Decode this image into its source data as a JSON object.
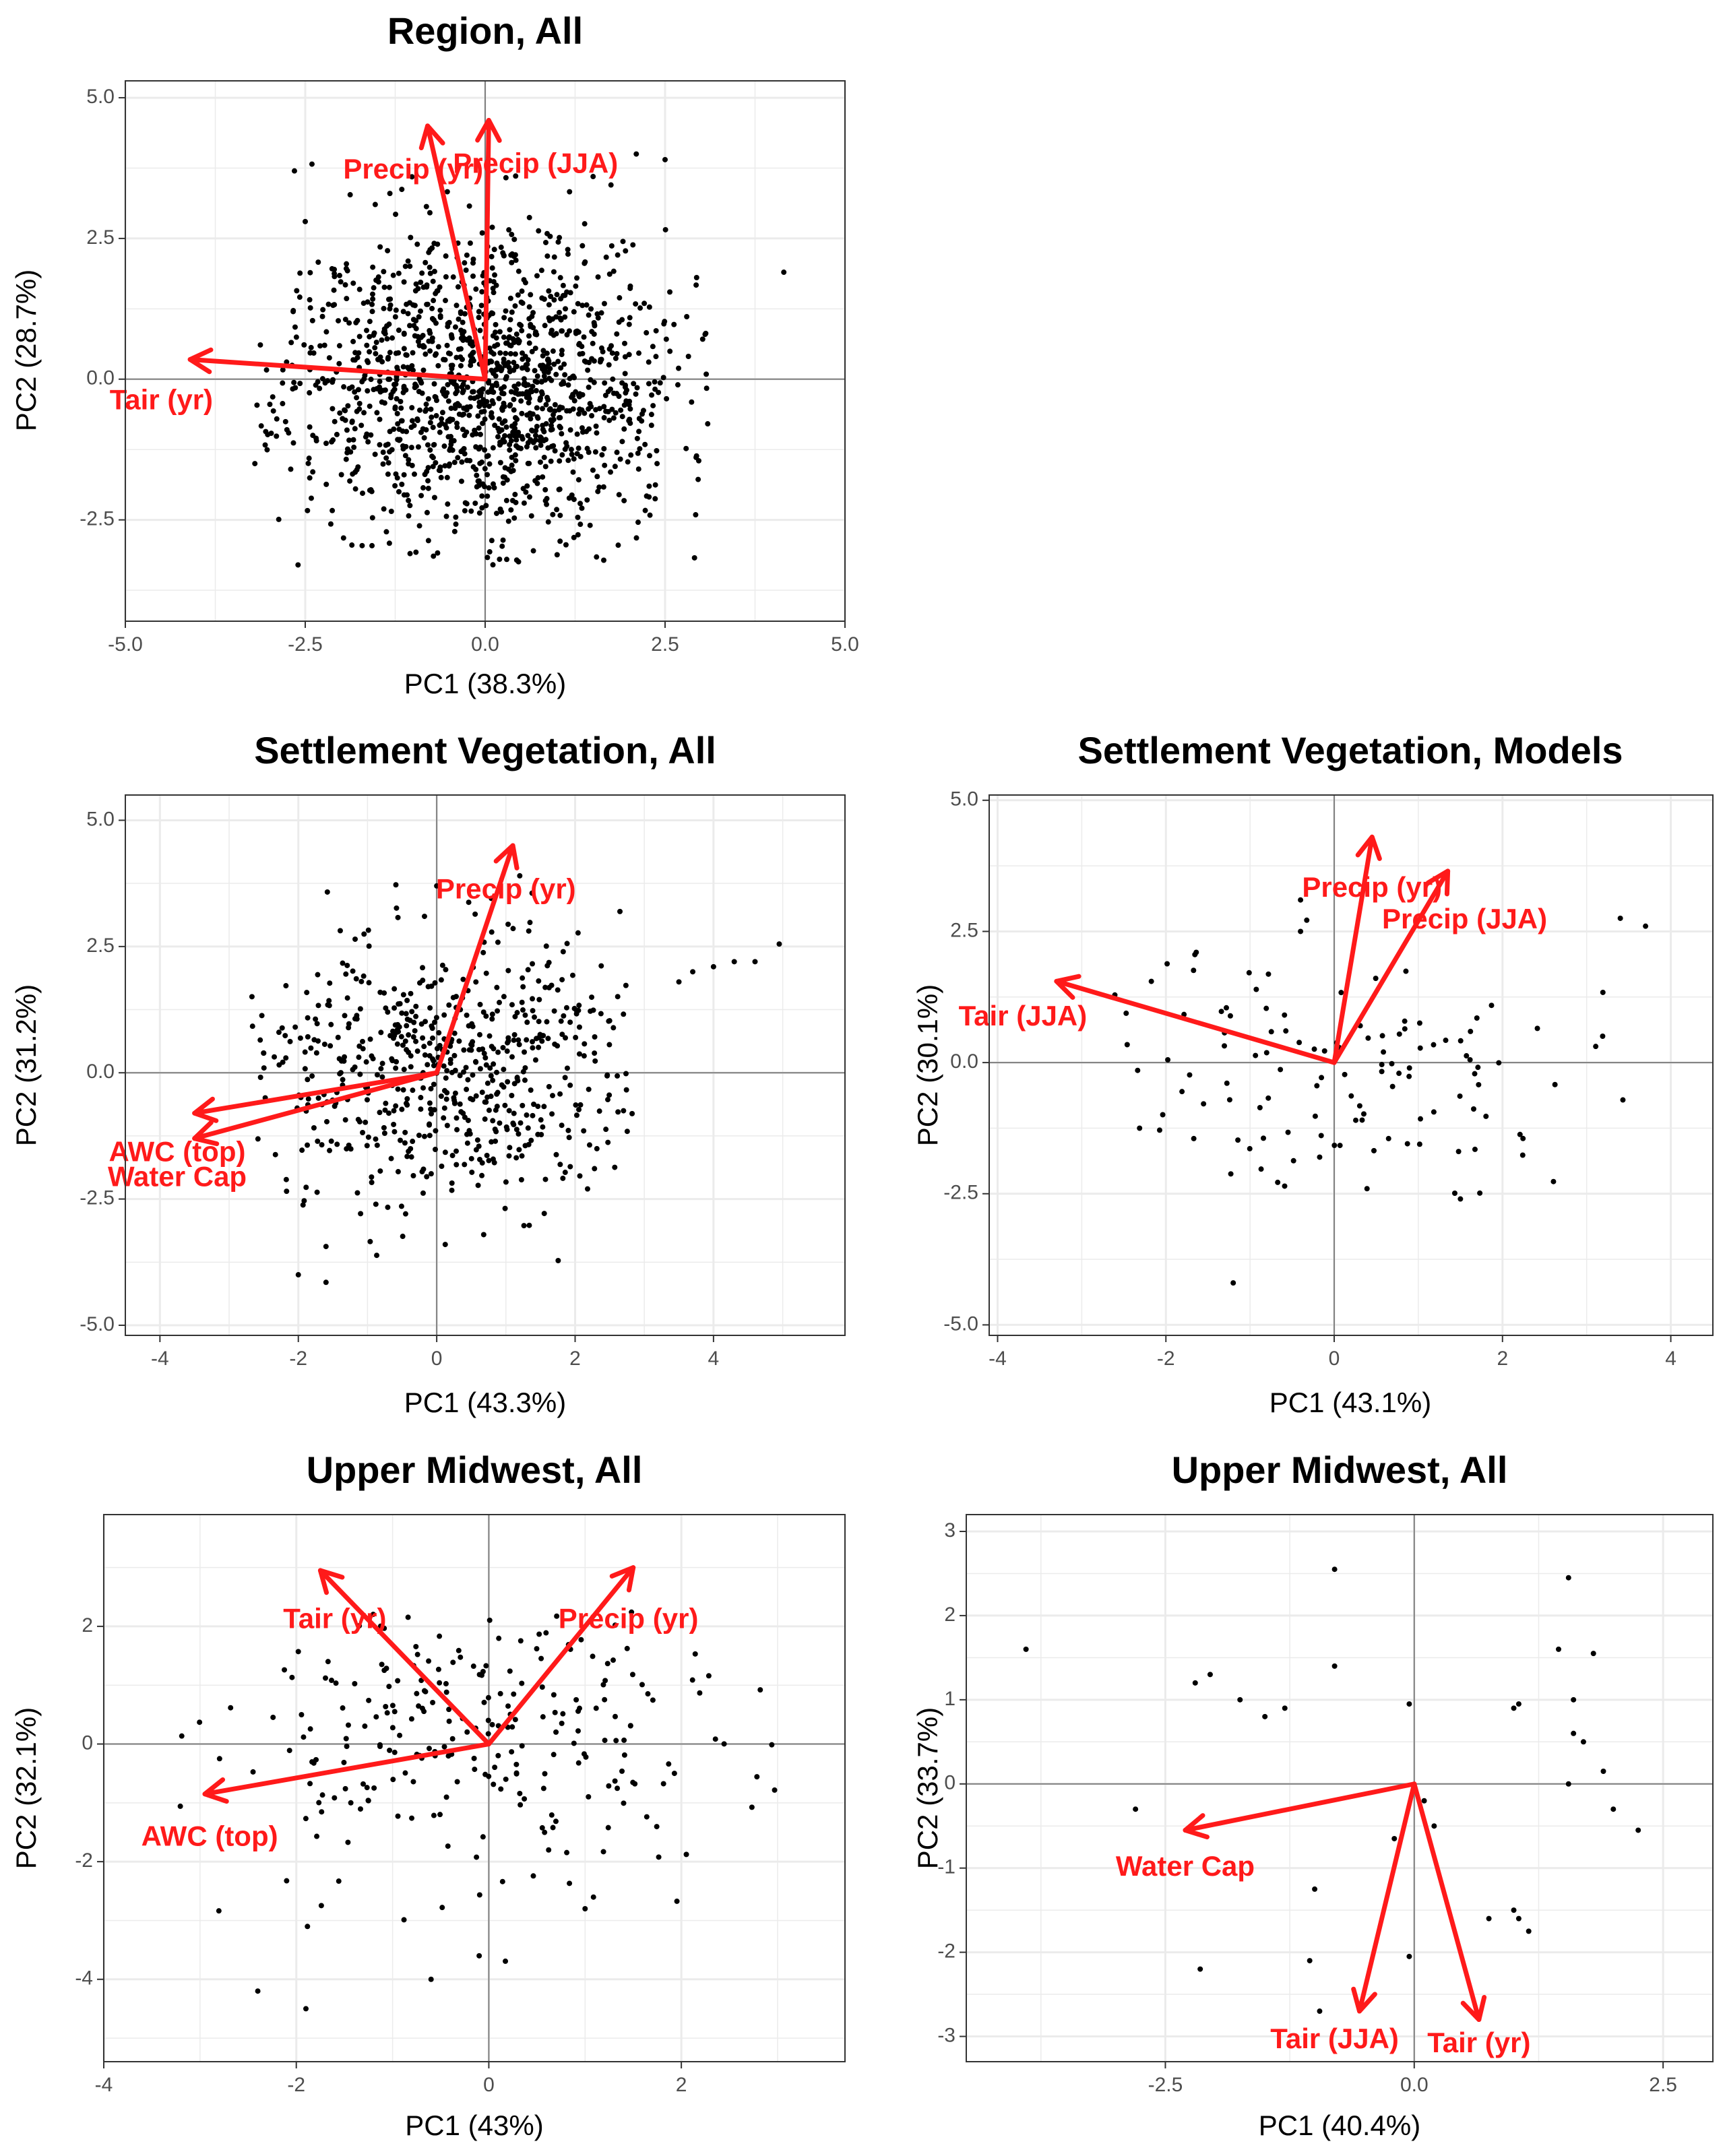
{
  "colors": {
    "arrow": "#FF1A1A",
    "point": "#000000",
    "grid": "#EBEBEB",
    "zero_line": "#7F7F7F",
    "border": "#333333"
  },
  "chart_data": [
    {
      "id": "region-all",
      "type": "scatter",
      "title": "Region, All",
      "xlabel": "PC1 (38.3%)",
      "ylabel": "PC2 (28.7%)",
      "xlim": [
        -5.0,
        5.0
      ],
      "ylim": [
        -4.3,
        5.3
      ],
      "xticks": [
        -5,
        -2.5,
        0,
        2.5,
        5
      ],
      "xtick_labels": [
        "-5.0",
        "-2.5",
        "0.0",
        "2.5",
        "5.0"
      ],
      "yticks": [
        -2.5,
        0,
        2.5,
        5
      ],
      "ytick_labels": [
        "-2.5",
        "0.0",
        "2.5",
        "5.0"
      ],
      "point_cloud": {
        "n": 1400,
        "seed": 11,
        "center": [
          0.0,
          -0.1
        ],
        "spread": [
          1.35,
          1.35
        ],
        "xrange": [
          -3.2,
          3.1
        ],
        "yrange": [
          -3.35,
          4.0
        ],
        "outliers": [
          [
            4.15,
            1.9
          ],
          [
            -2.65,
            3.7
          ],
          [
            -2.5,
            2.8
          ],
          [
            2.1,
            4.0
          ],
          [
            2.5,
            3.9
          ],
          [
            1.5,
            3.6
          ],
          [
            -3.2,
            -1.5
          ],
          [
            -2.6,
            -3.3
          ],
          [
            0.2,
            -3.2
          ]
        ]
      },
      "vectors": [
        {
          "label": "Tair (yr)",
          "x": -4.1,
          "y": 0.35,
          "lx": -4.5,
          "ly": -0.4,
          "anchor": "middle"
        },
        {
          "label": "Precip (yr)",
          "x": -0.8,
          "y": 4.5,
          "lx": -1.0,
          "ly": 3.7,
          "anchor": "middle"
        },
        {
          "label": "Precip (JJA)",
          "x": 0.05,
          "y": 4.6,
          "lx": 0.7,
          "ly": 3.8,
          "anchor": "middle"
        }
      ]
    },
    {
      "id": "settlement-veg-all",
      "type": "scatter",
      "title": "Settlement Vegetation, All",
      "xlabel": "PC1 (43.3%)",
      "ylabel": "PC2 (31.2%)",
      "xlim": [
        -4.5,
        5.9
      ],
      "ylim": [
        -5.2,
        5.5
      ],
      "xticks": [
        -4,
        -2,
        0,
        2,
        4
      ],
      "xtick_labels": [
        "-4",
        "-2",
        "0",
        "2",
        "4"
      ],
      "yticks": [
        -5,
        -2.5,
        0,
        2.5,
        5
      ],
      "ytick_labels": [
        "-5.0",
        "-2.5",
        "0.0",
        "2.5",
        "5.0"
      ],
      "point_cloud": {
        "n": 620,
        "seed": 23,
        "center": [
          0.0,
          0.0
        ],
        "spread": [
          1.5,
          1.35
        ],
        "xrange": [
          -2.7,
          2.9
        ],
        "yrange": [
          -3.8,
          3.9
        ],
        "outliers": [
          [
            4.0,
            2.1
          ],
          [
            4.3,
            2.2
          ],
          [
            4.6,
            2.2
          ],
          [
            4.95,
            2.55
          ],
          [
            3.7,
            2.0
          ],
          [
            3.5,
            1.8
          ],
          [
            -2.0,
            -4.0
          ],
          [
            -1.6,
            -4.15
          ],
          [
            1.2,
            3.9
          ],
          [
            0.0,
            3.7
          ]
        ]
      },
      "vectors": [
        {
          "label": "Precip (yr)",
          "x": 1.1,
          "y": 4.5,
          "lx": 1.0,
          "ly": 3.6,
          "anchor": "middle"
        },
        {
          "label": "AWC (top)",
          "x": -3.5,
          "y": -0.8,
          "lx": -3.75,
          "ly": -1.6,
          "anchor": "middle"
        },
        {
          "label": "Water Cap",
          "x": -3.5,
          "y": -1.3,
          "lx": -3.75,
          "ly": -2.1,
          "anchor": "middle"
        }
      ]
    },
    {
      "id": "settlement-veg-models",
      "type": "scatter",
      "title": "Settlement Vegetation, Models",
      "xlabel": "PC1 (43.1%)",
      "ylabel": "PC2 (30.1%)",
      "xlim": [
        -4.1,
        4.5
      ],
      "ylim": [
        -5.2,
        5.1
      ],
      "xticks": [
        -4,
        -2,
        0,
        2,
        4
      ],
      "xtick_labels": [
        "-4",
        "-2",
        "0",
        "2",
        "4"
      ],
      "yticks": [
        -5,
        -2.5,
        0,
        2.5,
        5
      ],
      "ytick_labels": [
        "-5.0",
        "-2.5",
        "0.0",
        "2.5",
        "5.0"
      ],
      "point_cloud": {
        "n": 120,
        "seed": 37,
        "center": [
          0.0,
          -0.2
        ],
        "spread": [
          1.5,
          1.2
        ],
        "xrange": [
          -2.7,
          3.7
        ],
        "yrange": [
          -2.8,
          3.2
        ],
        "outliers": [
          [
            -1.2,
            -4.2
          ],
          [
            3.7,
            2.6
          ],
          [
            3.4,
            2.75
          ],
          [
            -0.4,
            3.1
          ],
          [
            -0.4,
            2.5
          ],
          [
            1.5,
            -2.6
          ]
        ]
      },
      "vectors": [
        {
          "label": "Tair (JJA)",
          "x": -3.3,
          "y": 1.55,
          "lx": -3.7,
          "ly": 0.85,
          "anchor": "middle"
        },
        {
          "label": "Precip (yr)",
          "x": 0.45,
          "y": 4.3,
          "lx": 0.45,
          "ly": 3.3,
          "anchor": "middle"
        },
        {
          "label": "Precip (JJA)",
          "x": 1.35,
          "y": 3.65,
          "lx": 1.55,
          "ly": 2.7,
          "anchor": "middle"
        }
      ]
    },
    {
      "id": "upper-midwest-all-1",
      "type": "scatter",
      "title": "Upper Midwest, All",
      "xlabel": "PC1 (43%)",
      "ylabel": "PC2 (32.1%)",
      "xlim": [
        -4.0,
        3.7
      ],
      "ylim": [
        -5.4,
        3.9
      ],
      "xticks": [
        -4,
        -2,
        0,
        2
      ],
      "xtick_labels": [
        "-4",
        "-2",
        "0",
        "2"
      ],
      "yticks": [
        -4,
        -2,
        0,
        2
      ],
      "ytick_labels": [
        "-4",
        "-2",
        "0",
        "2"
      ],
      "point_cloud": {
        "n": 250,
        "seed": 53,
        "center": [
          0.0,
          0.0
        ],
        "spread": [
          1.45,
          1.3
        ],
        "xrange": [
          -3.3,
          3.0
        ],
        "yrange": [
          -3.7,
          2.5
        ],
        "outliers": [
          [
            -2.4,
            -4.2
          ],
          [
            -1.9,
            -4.5
          ],
          [
            -0.6,
            -4.0
          ],
          [
            -0.1,
            -3.6
          ],
          [
            1.0,
            -2.8
          ]
        ]
      },
      "vectors": [
        {
          "label": "Tair (yr)",
          "x": -1.75,
          "y": 2.95,
          "lx": -1.6,
          "ly": 2.1,
          "anchor": "middle"
        },
        {
          "label": "Precip (yr)",
          "x": 1.5,
          "y": 3.0,
          "lx": 1.45,
          "ly": 2.1,
          "anchor": "middle"
        },
        {
          "label": "AWC (top)",
          "x": -2.95,
          "y": -0.85,
          "lx": -2.9,
          "ly": -1.6,
          "anchor": "middle"
        }
      ]
    },
    {
      "id": "upper-midwest-all-2",
      "type": "scatter",
      "title": "Upper Midwest, All",
      "xlabel": "PC1 (40.4%)",
      "ylabel": "PC2 (33.7%)",
      "xlim": [
        -4.5,
        3.0
      ],
      "ylim": [
        -3.3,
        3.2
      ],
      "xticks": [
        -2.5,
        0,
        2.5
      ],
      "xtick_labels": [
        "-2.5",
        "0.0",
        "2.5"
      ],
      "yticks": [
        -3,
        -2,
        -1,
        0,
        1,
        2,
        3
      ],
      "ytick_labels": [
        "-3",
        "-2",
        "-1",
        "0",
        "1",
        "2",
        "3"
      ],
      "points": [
        [
          -3.9,
          1.6
        ],
        [
          -2.8,
          -0.3
        ],
        [
          -2.2,
          1.2
        ],
        [
          -2.05,
          1.3
        ],
        [
          -1.75,
          1.0
        ],
        [
          -1.5,
          0.8
        ],
        [
          -1.3,
          0.9
        ],
        [
          -0.8,
          2.55
        ],
        [
          -0.8,
          1.4
        ],
        [
          -1.0,
          -1.25
        ],
        [
          -1.05,
          -2.1
        ],
        [
          -0.95,
          -2.7
        ],
        [
          -2.15,
          -2.2
        ],
        [
          -0.2,
          -0.65
        ],
        [
          -0.05,
          0.95
        ],
        [
          0.1,
          -0.2
        ],
        [
          0.2,
          -0.5
        ],
        [
          -0.05,
          -2.05
        ],
        [
          0.75,
          -1.6
        ],
        [
          1.0,
          -1.5
        ],
        [
          1.05,
          -1.6
        ],
        [
          1.15,
          -1.75
        ],
        [
          1.0,
          0.9
        ],
        [
          1.05,
          0.95
        ],
        [
          1.45,
          1.6
        ],
        [
          1.55,
          2.45
        ],
        [
          1.6,
          0.6
        ],
        [
          1.7,
          0.5
        ],
        [
          1.8,
          1.55
        ],
        [
          1.9,
          0.15
        ],
        [
          2.0,
          -0.3
        ],
        [
          2.25,
          -0.55
        ],
        [
          1.55,
          0.0
        ],
        [
          1.6,
          1.0
        ]
      ],
      "vectors": [
        {
          "label": "Water Cap",
          "x": -2.3,
          "y": -0.55,
          "lx": -2.3,
          "ly": -1.0,
          "anchor": "middle"
        },
        {
          "label": "Tair (JJA)",
          "x": -0.55,
          "y": -2.7,
          "lx": -0.8,
          "ly": -3.05,
          "anchor": "middle"
        },
        {
          "label": "Tair (yr)",
          "x": 0.65,
          "y": -2.8,
          "lx": 0.65,
          "ly": -3.1,
          "anchor": "middle"
        }
      ]
    }
  ]
}
